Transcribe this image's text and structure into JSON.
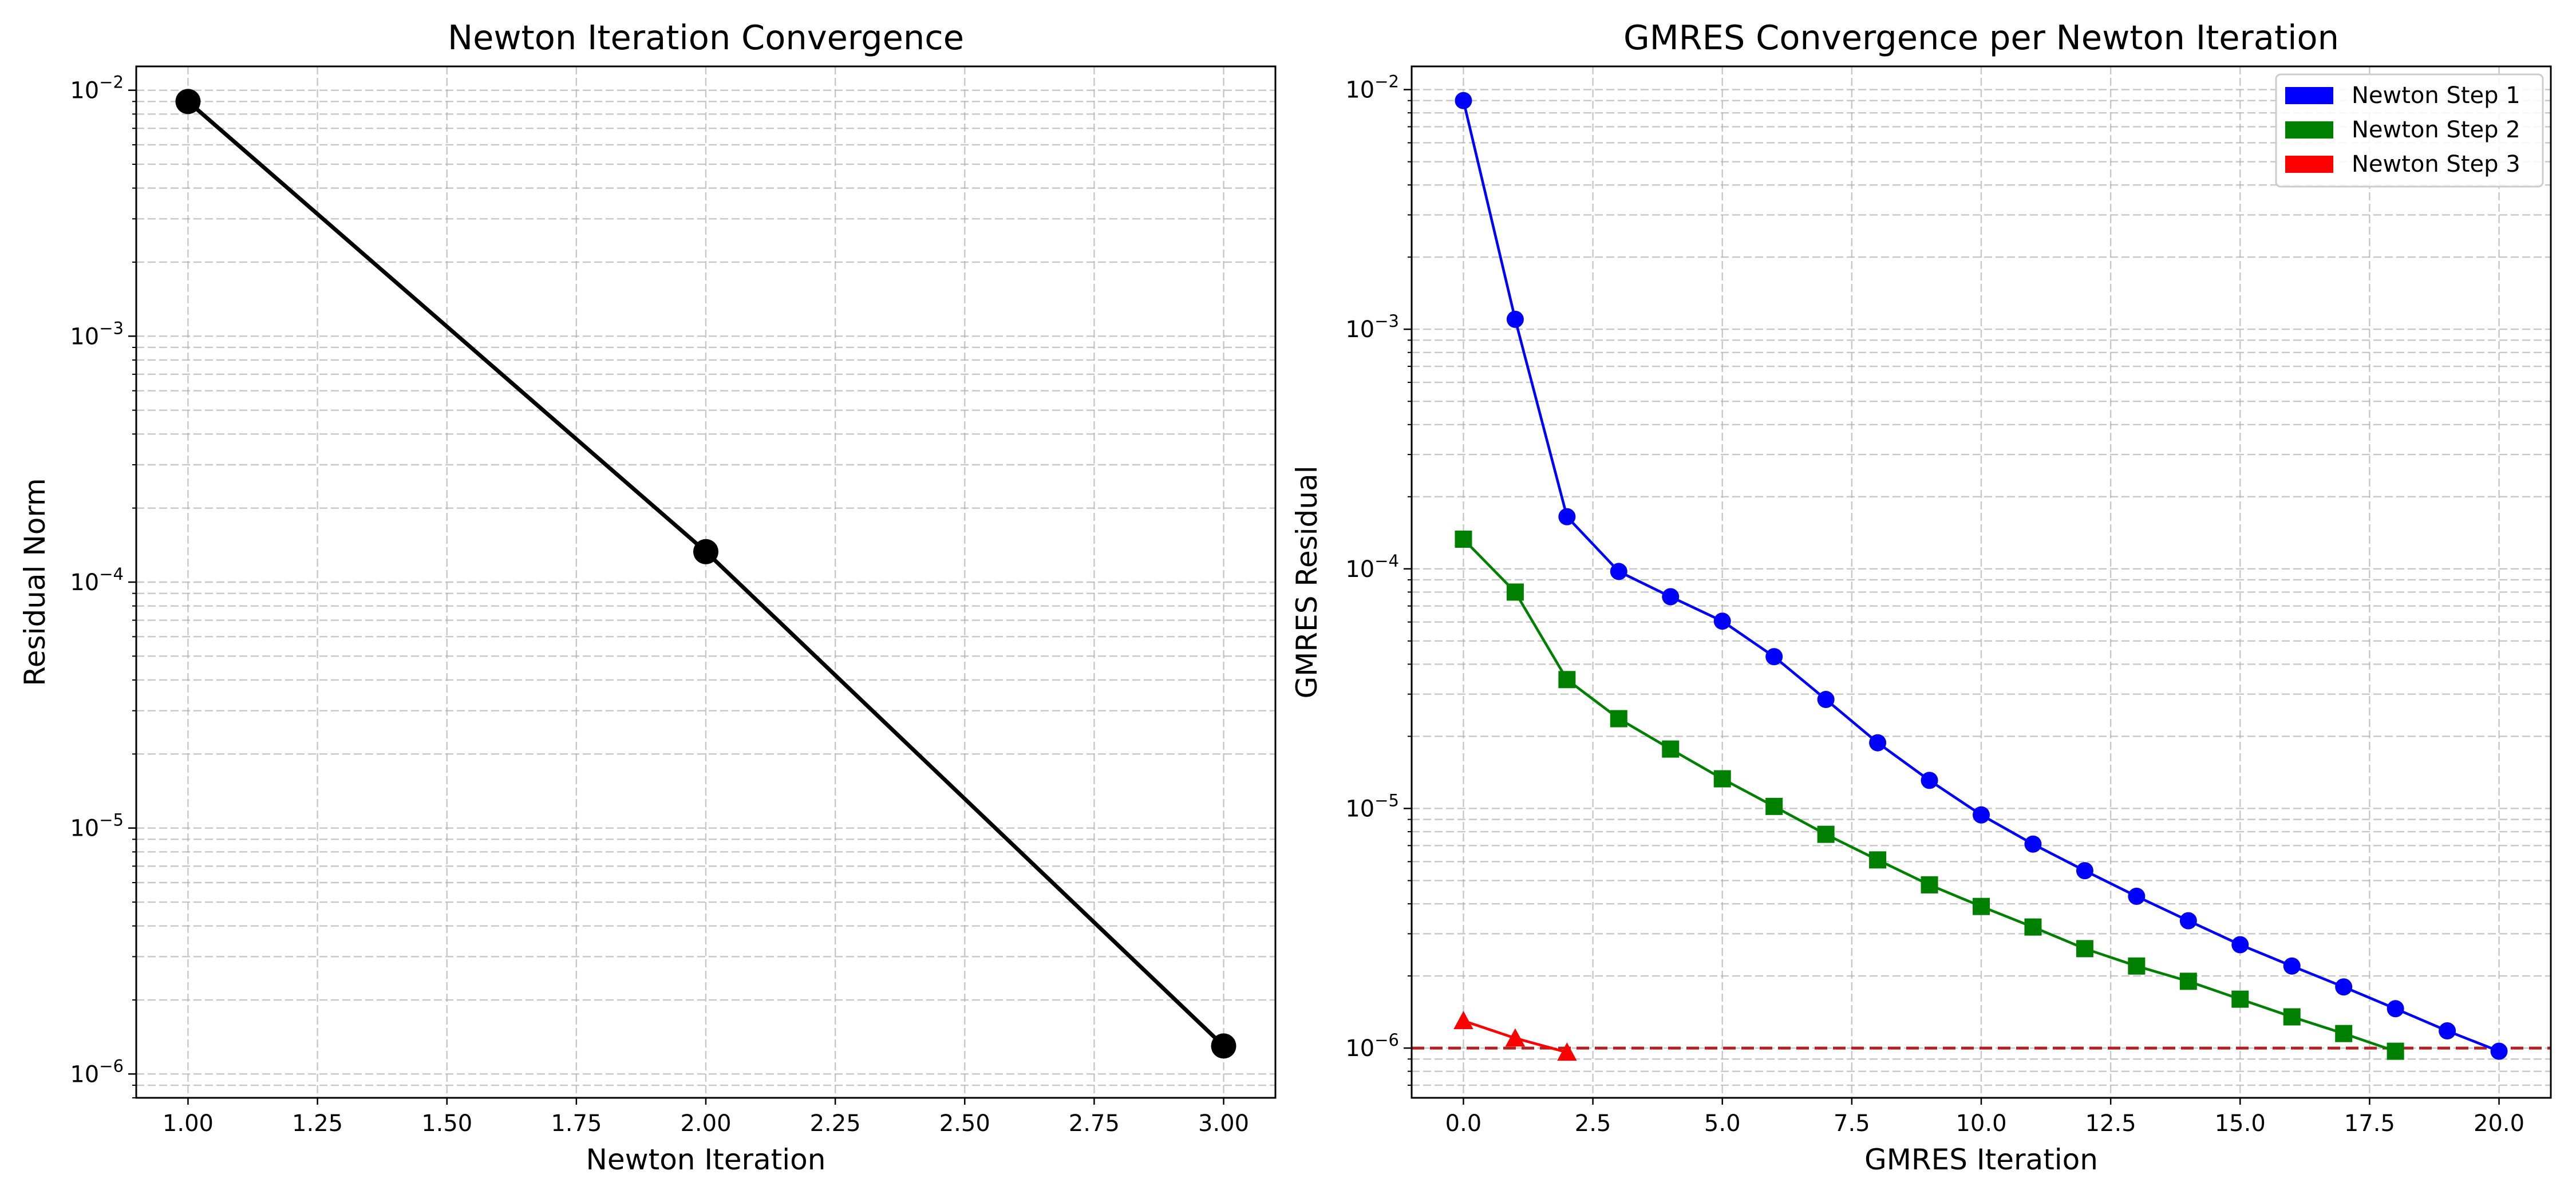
{
  "chart_data": [
    {
      "type": "line",
      "title": "Newton Iteration Convergence",
      "xlabel": "Newton Iteration",
      "ylabel": "Residual Norm",
      "yscale": "log",
      "grid": true,
      "xlim": [
        0.9,
        3.1
      ],
      "ylim": [
        8e-07,
        0.0125
      ],
      "xticks": [
        "1.00",
        "1.25",
        "1.50",
        "1.75",
        "2.00",
        "2.25",
        "2.50",
        "2.75",
        "3.00"
      ],
      "yticks": [
        "10^-2",
        "10^-3",
        "10^-4",
        "10^-5",
        "10^-6"
      ],
      "series": [
        {
          "color": "#000000",
          "marker": "circle",
          "x": [
            1,
            2,
            3
          ],
          "y": [
            0.009,
            0.000133,
            1.3e-06
          ]
        }
      ]
    },
    {
      "type": "line",
      "title": "GMRES Convergence per Newton Iteration",
      "xlabel": "GMRES Iteration",
      "ylabel": "GMRES Residual",
      "yscale": "log",
      "grid": true,
      "legend_position": "top-right",
      "xlim": [
        -1,
        21
      ],
      "ylim": [
        6.2e-07,
        0.0125
      ],
      "xticks": [
        "0.0",
        "2.5",
        "5.0",
        "7.5",
        "10.0",
        "12.5",
        "15.0",
        "17.5",
        "20.0"
      ],
      "yticks": [
        "10^-2",
        "10^-3",
        "10^-4",
        "10^-5",
        "10^-6"
      ],
      "threshold": {
        "y": 1e-06,
        "color": "#b22222",
        "style": "dashed"
      },
      "series": [
        {
          "name": "Newton Step 1",
          "color": "#0000ff",
          "marker": "circle",
          "x": [
            0,
            1,
            2,
            3,
            4,
            5,
            6,
            7,
            8,
            9,
            10,
            11,
            12,
            13,
            14,
            15,
            16,
            17,
            18,
            19,
            20
          ],
          "y": [
            0.009,
            0.0011,
            0.000165,
            9.75e-05,
            7.65e-05,
            6.05e-05,
            4.3e-05,
            2.85e-05,
            1.88e-05,
            1.31e-05,
            9.4e-06,
            7.1e-06,
            5.5e-06,
            4.3e-06,
            3.4e-06,
            2.7e-06,
            2.2e-06,
            1.8e-06,
            1.46e-06,
            1.18e-06,
            9.7e-07
          ]
        },
        {
          "name": "Newton Step 2",
          "color": "#008000",
          "marker": "square",
          "x": [
            0,
            1,
            2,
            3,
            4,
            5,
            6,
            7,
            8,
            9,
            10,
            11,
            12,
            13,
            14,
            15,
            16,
            17,
            18
          ],
          "y": [
            0.000133,
            8e-05,
            3.45e-05,
            2.37e-05,
            1.77e-05,
            1.33e-05,
            1.02e-05,
            7.8e-06,
            6.1e-06,
            4.8e-06,
            3.9e-06,
            3.2e-06,
            2.6e-06,
            2.2e-06,
            1.9e-06,
            1.6e-06,
            1.35e-06,
            1.15e-06,
            9.7e-07
          ]
        },
        {
          "name": "Newton Step 3",
          "color": "#ff0000",
          "marker": "triangle",
          "x": [
            0,
            1,
            2
          ],
          "y": [
            1.3e-06,
            1.1e-06,
            9.6e-07
          ]
        }
      ]
    }
  ]
}
